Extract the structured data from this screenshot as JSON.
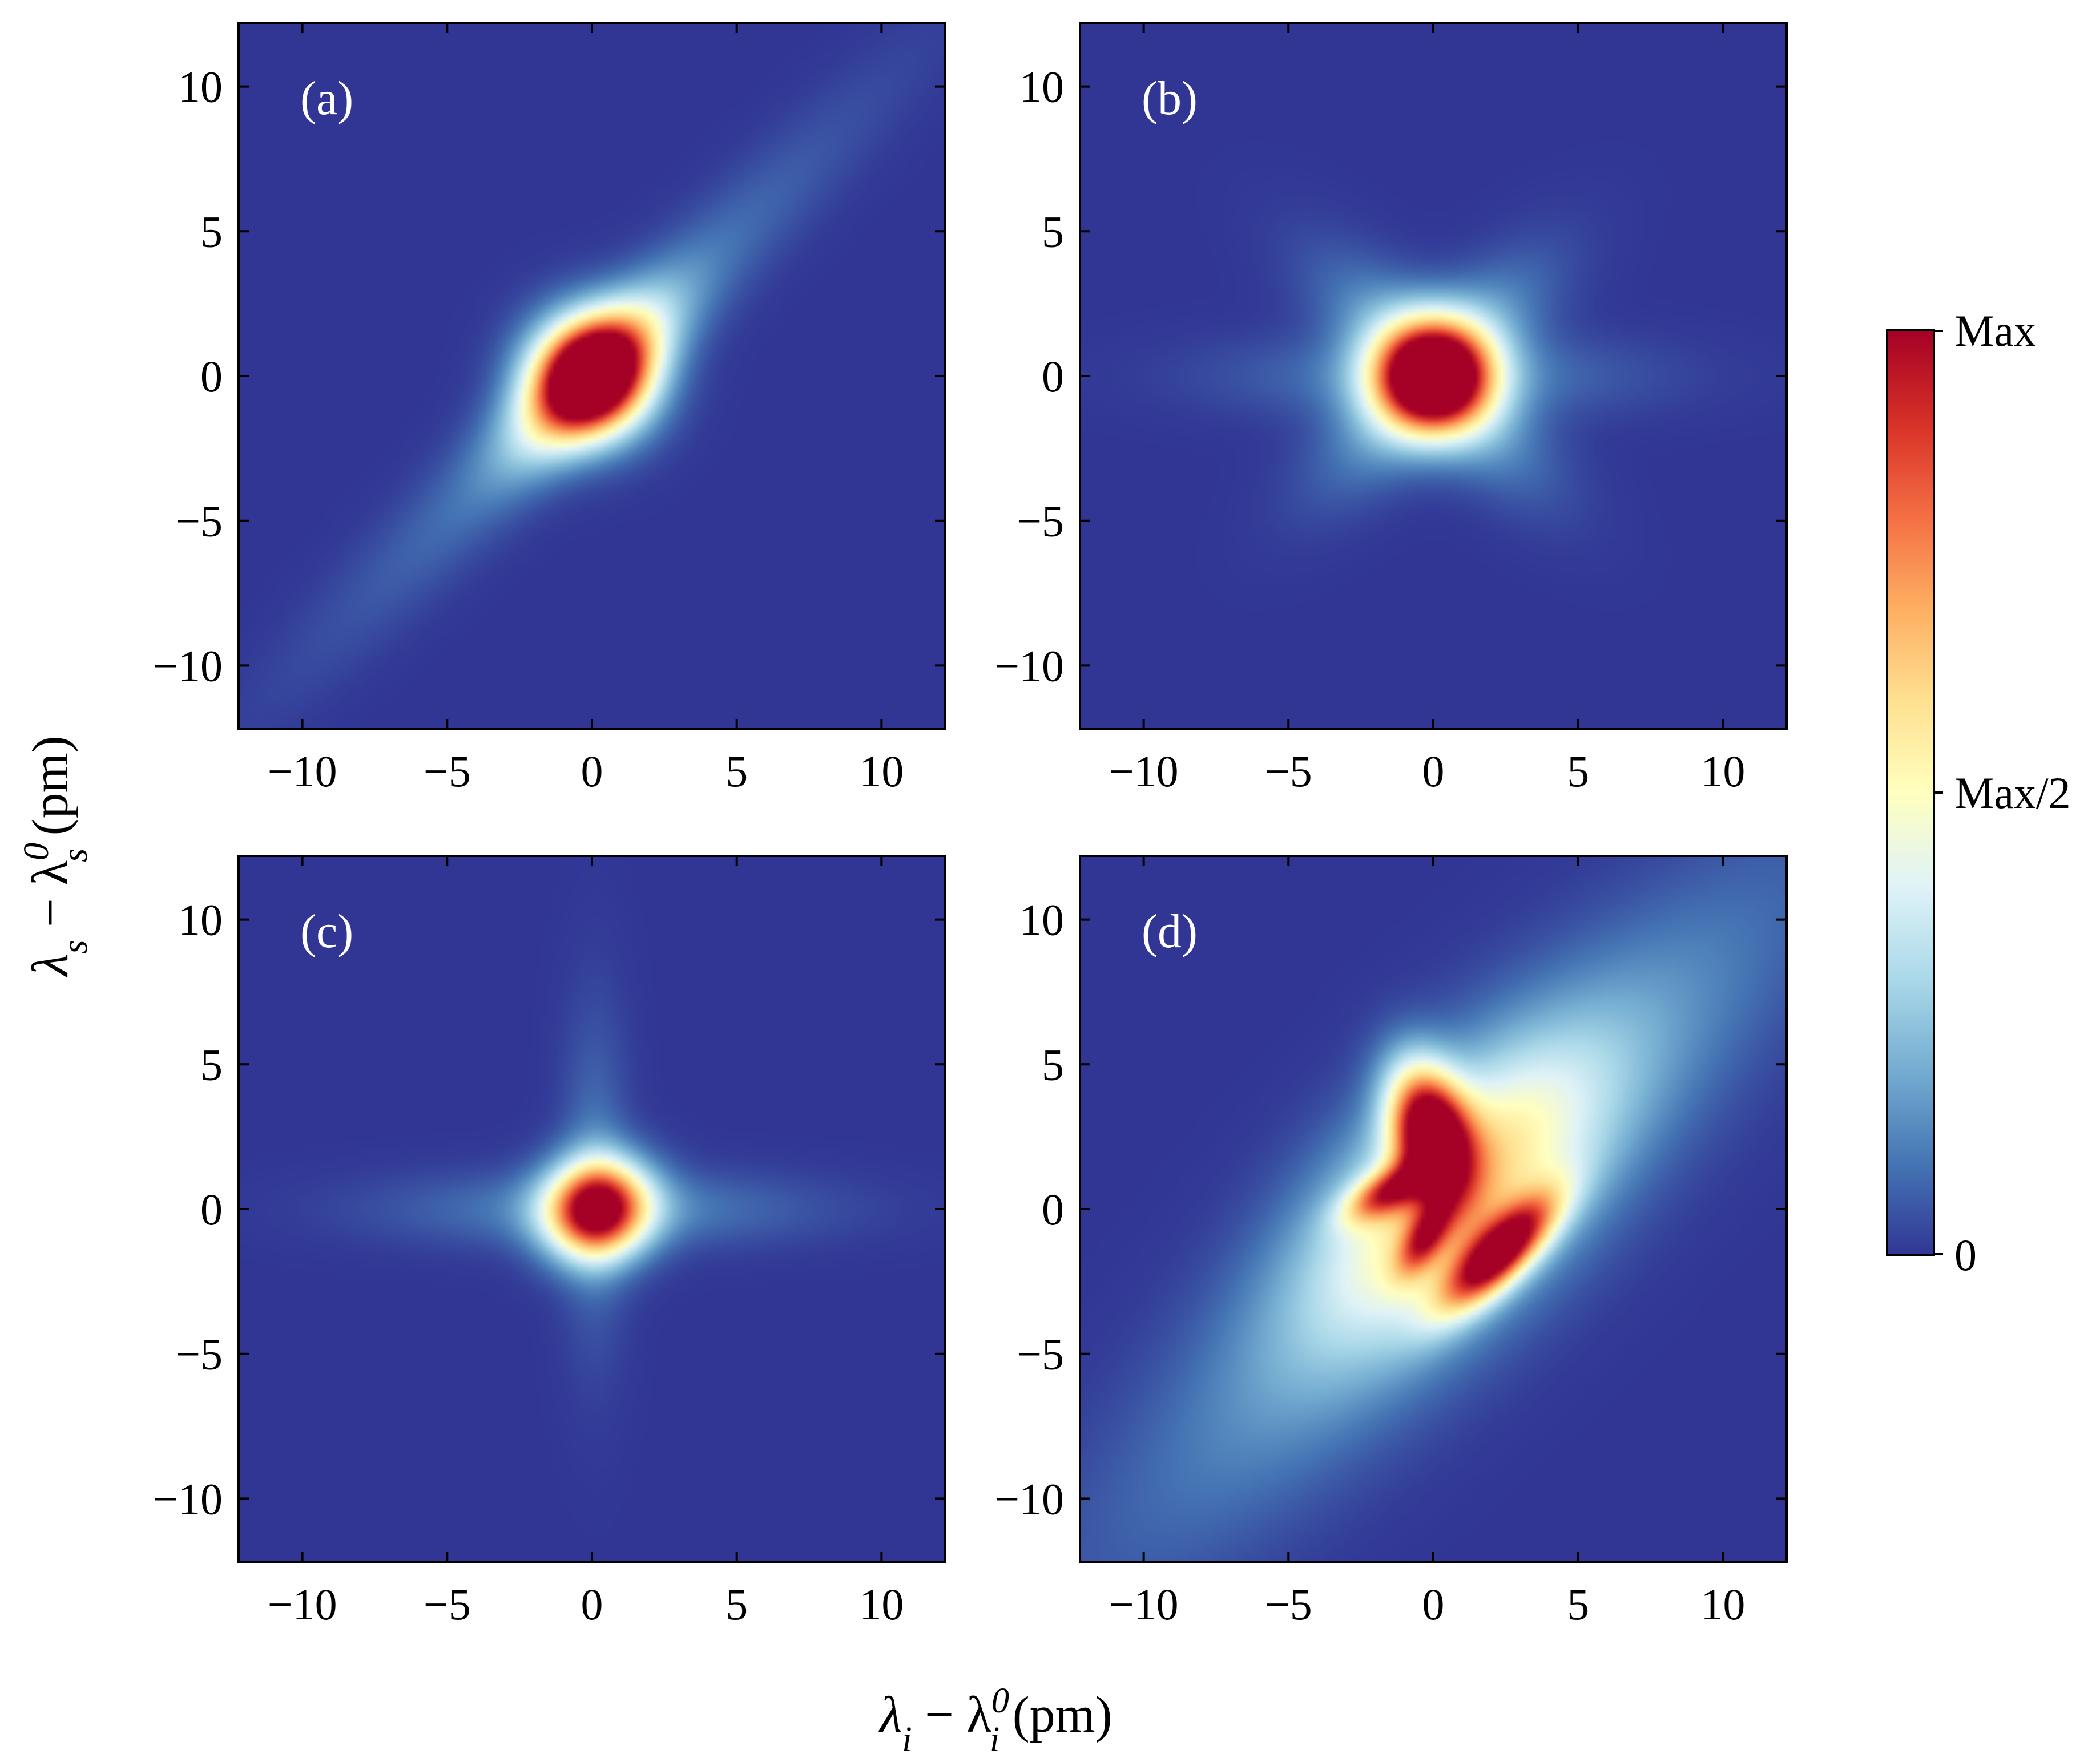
{
  "chart_data": {
    "type": "heatmap",
    "xlabel": {
      "main": "λ",
      "sub": "i",
      "minus": " − λ",
      "sup": "0",
      "sub2": "i",
      "unit": " (pm)"
    },
    "ylabel": {
      "main": "λ",
      "sub": "s",
      "minus": " − λ",
      "sup": "0",
      "sub2": "s",
      "unit": " (pm)"
    },
    "xlim": [
      -12.2,
      12.2
    ],
    "ylim": [
      -12.2,
      12.2
    ],
    "ticks": [
      -10,
      -5,
      0,
      5,
      10
    ],
    "tick_labels": [
      "−10",
      "−5",
      "0",
      "5",
      "10"
    ],
    "panels": [
      {
        "label": "(a)",
        "description": "bright spot at origin elongated along anti-diagonal with faint tails",
        "blobs": [
          {
            "cx": 0.0,
            "cy": 0.0,
            "sx": 1.4,
            "sy": 1.4,
            "rot": -45,
            "amp": 1.0
          },
          {
            "cx": 0.0,
            "cy": 0.0,
            "sx": 1.05,
            "sy": 2.4,
            "rot": -45,
            "amp": 0.55
          },
          {
            "cx": 0.0,
            "cy": 0.0,
            "sx": 1.1,
            "sy": 8.5,
            "rot": -45,
            "amp": 0.12
          }
        ]
      },
      {
        "label": "(b)",
        "description": "symmetric diamond-shaped spot at origin",
        "blobs": [
          {
            "cx": 0.0,
            "cy": 0.0,
            "sx": 1.35,
            "sy": 1.35,
            "rot": 45,
            "amp": 1.0
          },
          {
            "cx": 0.0,
            "cy": 0.0,
            "sx": 3.2,
            "sy": 1.2,
            "rot": 45,
            "amp": 0.25
          },
          {
            "cx": 0.0,
            "cy": 0.0,
            "sx": 3.2,
            "sy": 1.2,
            "rot": -45,
            "amp": 0.25
          },
          {
            "cx": 0.0,
            "cy": 0.0,
            "sx": 4.8,
            "sy": 1.0,
            "rot": 0,
            "amp": 0.12
          }
        ]
      },
      {
        "label": "(c)",
        "description": "spot near origin with a faint horizontal cross",
        "blobs": [
          {
            "cx": 0.2,
            "cy": 0.0,
            "sx": 1.25,
            "sy": 1.15,
            "rot": 20,
            "amp": 1.0
          },
          {
            "cx": 0.3,
            "cy": 0.0,
            "sx": 5.0,
            "sy": 0.9,
            "rot": 0,
            "amp": 0.13
          },
          {
            "cx": 0.1,
            "cy": 1.0,
            "sx": 0.8,
            "sy": 4.0,
            "rot": 0,
            "amp": 0.1
          }
        ]
      },
      {
        "label": "(d)",
        "description": "complex structure: strong lobe above origin, diagonal lobe below-right, broad anti-diagonal band",
        "blobs": [
          {
            "cx": -0.1,
            "cy": 2.7,
            "sx": 0.9,
            "sy": 1.6,
            "rot": 15,
            "amp": 1.0
          },
          {
            "cx": 2.3,
            "cy": -1.5,
            "sx": 0.65,
            "sy": 1.8,
            "rot": -45,
            "amp": 0.9
          },
          {
            "cx": -1.6,
            "cy": 0.6,
            "sx": 0.5,
            "sy": 1.1,
            "rot": -60,
            "amp": 0.55
          },
          {
            "cx": -0.3,
            "cy": -1.0,
            "sx": 0.45,
            "sy": 1.0,
            "rot": -30,
            "amp": 0.45
          },
          {
            "cx": 0.8,
            "cy": 0.8,
            "sx": 2.2,
            "sy": 4.5,
            "rot": -45,
            "amp": 0.45
          },
          {
            "cx": 1.0,
            "cy": 0.0,
            "sx": 2.5,
            "sy": 11.0,
            "rot": -45,
            "amp": 0.2
          }
        ]
      }
    ],
    "colorbar": {
      "colormap": "RdYlBu_r",
      "ticks": [
        "Max",
        "Max/2",
        "0"
      ],
      "colors": [
        "#313695",
        "#4575b4",
        "#74add1",
        "#abd9e9",
        "#e0f3f8",
        "#ffffbf",
        "#fee090",
        "#fdae61",
        "#f46d43",
        "#d73027",
        "#a50026"
      ]
    }
  }
}
